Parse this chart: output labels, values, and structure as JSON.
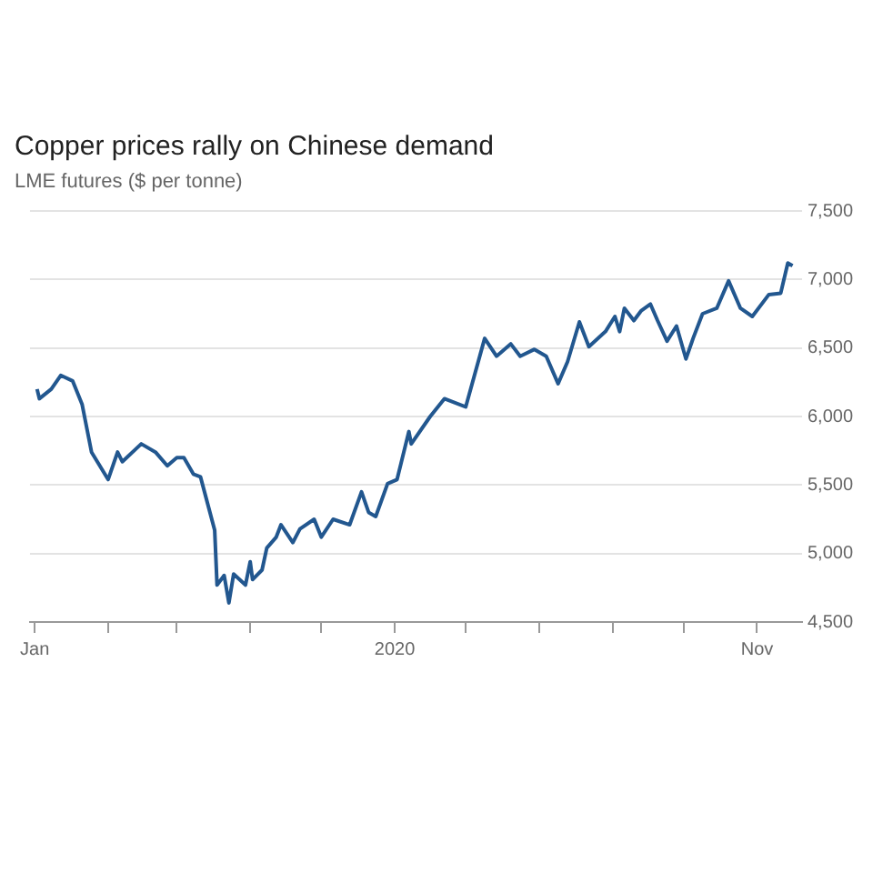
{
  "chart_data": {
    "type": "line",
    "title": "Copper prices rally on Chinese demand",
    "subtitle": "LME futures ($ per tonne)",
    "x": [
      "2020-01-02",
      "2020-01-03",
      "2020-01-08",
      "2020-01-12",
      "2020-01-17",
      "2020-01-21",
      "2020-01-25",
      "2020-02-01",
      "2020-02-05",
      "2020-02-07",
      "2020-02-15",
      "2020-02-21",
      "2020-02-26",
      "2020-03-01",
      "2020-03-04",
      "2020-03-08",
      "2020-03-11",
      "2020-03-13",
      "2020-03-17",
      "2020-03-18",
      "2020-03-21",
      "2020-03-23",
      "2020-03-25",
      "2020-03-30",
      "2020-04-01",
      "2020-04-02",
      "2020-04-06",
      "2020-04-08",
      "2020-04-12",
      "2020-04-14",
      "2020-04-19",
      "2020-04-22",
      "2020-04-28",
      "2020-05-01",
      "2020-05-06",
      "2020-05-13",
      "2020-05-18",
      "2020-05-21",
      "2020-05-24",
      "2020-05-29",
      "2020-06-02",
      "2020-06-07",
      "2020-06-08",
      "2020-06-16",
      "2020-06-22",
      "2020-07-01",
      "2020-07-09",
      "2020-07-14",
      "2020-07-20",
      "2020-07-24",
      "2020-07-30",
      "2020-08-04",
      "2020-08-09",
      "2020-08-13",
      "2020-08-18",
      "2020-08-22",
      "2020-08-29",
      "2020-09-02",
      "2020-09-04",
      "2020-09-06",
      "2020-09-10",
      "2020-09-13",
      "2020-09-17",
      "2020-09-20",
      "2020-09-24",
      "2020-09-28",
      "2020-10-02",
      "2020-10-05",
      "2020-10-09",
      "2020-10-15",
      "2020-10-20",
      "2020-10-25",
      "2020-10-30",
      "2020-11-06",
      "2020-11-11",
      "2020-11-14",
      "2020-11-16"
    ],
    "series": [
      {
        "color": "#22578f",
        "values": [
          6200,
          6130,
          6200,
          6300,
          6260,
          6090,
          5740,
          5540,
          5740,
          5670,
          5800,
          5740,
          5640,
          5700,
          5700,
          5580,
          5560,
          5430,
          5170,
          4770,
          4840,
          4640,
          4850,
          4770,
          4940,
          4810,
          4880,
          5040,
          5120,
          5210,
          5080,
          5180,
          5250,
          5120,
          5250,
          5210,
          5450,
          5300,
          5270,
          5510,
          5540,
          5890,
          5800,
          6000,
          6130,
          6070,
          6570,
          6440,
          6530,
          6440,
          6490,
          6440,
          6240,
          6400,
          6690,
          6510,
          6620,
          6730,
          6620,
          6790,
          6700,
          6770,
          6820,
          6700,
          6550,
          6660,
          6420,
          6570,
          6750,
          6790,
          6990,
          6790,
          6730,
          6890,
          6900,
          7120,
          7100
        ]
      }
    ],
    "xlim": [
      "2019-12-30",
      "2020-11-20"
    ],
    "xticks": [
      {
        "value": "2020-01-01",
        "label": "Jan"
      },
      {
        "value": "2020-02-01",
        "label": null
      },
      {
        "value": "2020-03-01",
        "label": null
      },
      {
        "value": "2020-04-01",
        "label": null
      },
      {
        "value": "2020-05-01",
        "label": null
      },
      {
        "value": "2020-06-01",
        "label": "2020"
      },
      {
        "value": "2020-07-01",
        "label": null
      },
      {
        "value": "2020-08-01",
        "label": null
      },
      {
        "value": "2020-09-01",
        "label": null
      },
      {
        "value": "2020-10-01",
        "label": null
      },
      {
        "value": "2020-11-01",
        "label": "Nov"
      }
    ],
    "ylim": [
      4500,
      7500
    ],
    "yticks": [
      {
        "value": 4500,
        "label": "4,500"
      },
      {
        "value": 5000,
        "label": "5,000"
      },
      {
        "value": 5500,
        "label": "5,500"
      },
      {
        "value": 6000,
        "label": "6,000"
      },
      {
        "value": 6500,
        "label": "6,500"
      },
      {
        "value": 7000,
        "label": "7,000"
      },
      {
        "value": 7500,
        "label": "7,500"
      }
    ],
    "grid": "y",
    "legend": false,
    "marker": "none",
    "line_style": "solid"
  }
}
